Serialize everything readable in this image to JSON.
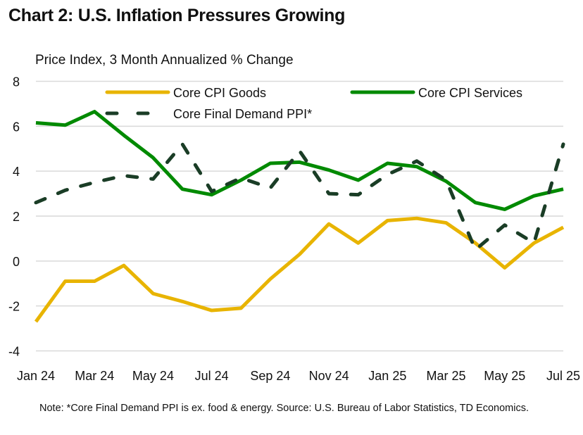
{
  "chart_data": {
    "type": "line",
    "title": "Chart 2: U.S. Inflation Pressures Growing",
    "ylabel": "Price Index, 3 Month Annualized % Change",
    "xlabel": "",
    "ylim": [
      -4,
      8
    ],
    "yticks": [
      "8",
      "6",
      "4",
      "2",
      "0",
      "-2",
      "-4"
    ],
    "ytick_values": [
      8,
      6,
      4,
      2,
      0,
      -2,
      -4
    ],
    "x": [
      "Jan 24",
      "Feb 24",
      "Mar 24",
      "Apr 24",
      "May 24",
      "Jun 24",
      "Jul 24",
      "Aug 24",
      "Sep 24",
      "Oct 24",
      "Nov 24",
      "Dec 24",
      "Jan 25",
      "Feb 25",
      "Mar 25",
      "Apr 25",
      "May 25",
      "Jun 25",
      "Jul 25"
    ],
    "xtick_labels": [
      "Jan 24",
      "Mar 24",
      "May 24",
      "Jul 24",
      "Sep 24",
      "Nov 24",
      "Jan 25",
      "Mar 25",
      "May 25",
      "Jul 25"
    ],
    "grid": true,
    "legend_position": "top",
    "series": [
      {
        "name": "Core CPI Goods",
        "color": "#E8B400",
        "style": "solid",
        "values": [
          -2.7,
          -0.9,
          -0.9,
          -0.2,
          -1.45,
          -1.8,
          -2.2,
          -2.1,
          -0.8,
          0.3,
          1.65,
          0.8,
          1.8,
          1.9,
          1.7,
          0.8,
          -0.3,
          0.8,
          1.5
        ]
      },
      {
        "name": "Core CPI Services",
        "color": "#008A00",
        "style": "solid",
        "values": [
          6.15,
          6.05,
          6.65,
          5.6,
          4.6,
          3.2,
          2.95,
          3.6,
          4.35,
          4.4,
          4.05,
          3.6,
          4.35,
          4.2,
          3.55,
          2.6,
          2.3,
          2.9,
          3.2
        ]
      },
      {
        "name": "Core Final Demand PPI*",
        "color": "#1A3D26",
        "style": "dashed",
        "values": [
          2.6,
          3.15,
          3.5,
          3.8,
          3.65,
          5.2,
          3.1,
          3.7,
          3.25,
          4.9,
          3.0,
          2.95,
          3.85,
          4.45,
          3.6,
          0.5,
          1.6,
          0.8,
          5.2
        ]
      }
    ]
  },
  "note": "Note: *Core Final Demand PPI is ex. food & energy. Source: U.S. Bureau of Labor Statistics, TD Economics."
}
